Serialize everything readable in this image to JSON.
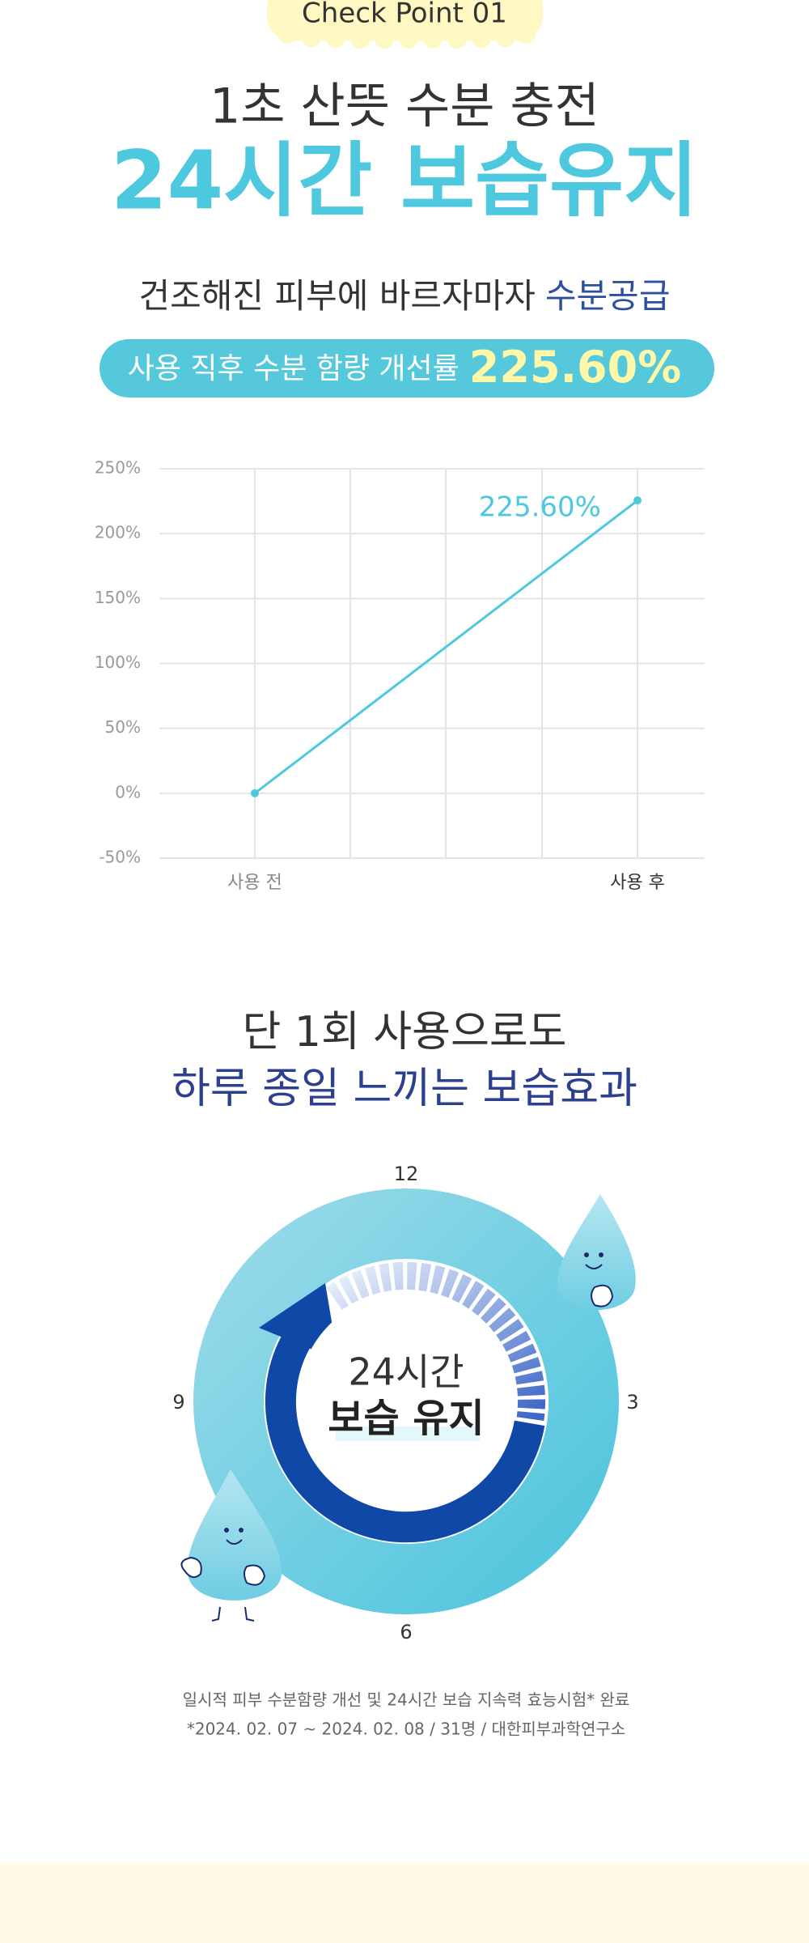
{
  "checkpoint": "Check Point 01",
  "headline": {
    "line1": "1초 산뜻 수분 충전",
    "line2": "24시간 보습유지"
  },
  "subheadline": {
    "text": "건조해진 피부에 바르자마자",
    "highlight": "수분공급"
  },
  "badge": {
    "label": "사용 직후 수분 함량 개선률",
    "value": "225.60%"
  },
  "chart_data": {
    "type": "line",
    "categories": [
      "사용 전",
      "사용 후"
    ],
    "values": [
      0,
      225.6
    ],
    "value_labels": [
      null,
      "225.60%"
    ],
    "color": "#4ec8de",
    "ylim": [
      -50,
      250
    ],
    "yticks": [
      {
        "value": -50,
        "label": "-50%"
      },
      {
        "value": 0,
        "label": "0%"
      },
      {
        "value": 50,
        "label": "50%"
      },
      {
        "value": 100,
        "label": "100%"
      },
      {
        "value": 150,
        "label": "150%"
      },
      {
        "value": 200,
        "label": "200%"
      },
      {
        "value": 250,
        "label": "250%"
      }
    ],
    "grid": true
  },
  "clock_section": {
    "title1": "단 1회 사용으로도",
    "title2": "하루 종일 느끼는 보습효과",
    "hours": [
      "12",
      "3",
      "6",
      "9"
    ],
    "center_line1": "24시간",
    "center_line2": "보습 유지"
  },
  "footnote": [
    "일시적 피부 수분함량 개선 및 24시간 보습 지속력 효능시험* 완료",
    "*2024. 02. 07 ~ 2024. 02. 08  / 31명 / 대한피부과학연구소"
  ]
}
